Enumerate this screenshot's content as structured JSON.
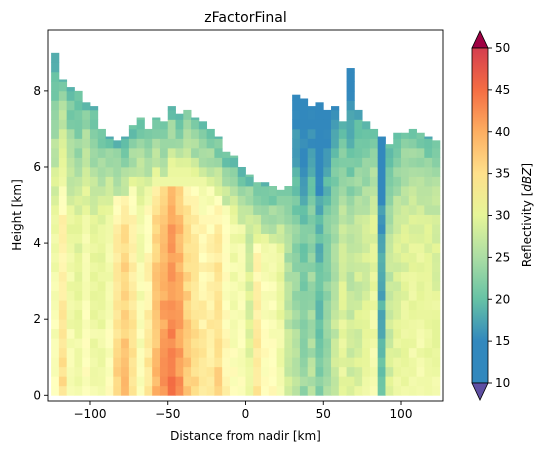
{
  "chart_data": {
    "type": "heatmap",
    "title": "zFactorFinal",
    "xlabel": "Distance from nadir [km]",
    "ylabel": "Height [km]",
    "xlim": [
      -127,
      127
    ],
    "ylim": [
      -0.15,
      9.6
    ],
    "x_ticks": [
      -100,
      -50,
      0,
      50,
      100
    ],
    "y_ticks": [
      0,
      2,
      4,
      6,
      8
    ],
    "colorbar": {
      "label_prefix": "Reflectivity [",
      "label_unit": "dBZ",
      "label_suffix": "]",
      "min": 10,
      "max": 50,
      "ticks": [
        10,
        15,
        20,
        25,
        30,
        35,
        40,
        45,
        50
      ],
      "colormap": "Spectral_r",
      "extend": "both"
    },
    "grid": {
      "x_start": -125,
      "x_step": 5,
      "y_step": 0.25,
      "column_centers_km": [
        -122.5,
        -117.5,
        -112.5,
        -107.5,
        -102.5,
        -97.5,
        -92.5,
        -87.5,
        -82.5,
        -77.5,
        -72.5,
        -67.5,
        -62.5,
        -57.5,
        -52.5,
        -47.5,
        -42.5,
        -37.5,
        -32.5,
        -27.5,
        -22.5,
        -17.5,
        -12.5,
        -7.5,
        -2.5,
        2.5,
        7.5,
        12.5,
        17.5,
        22.5,
        27.5,
        32.5,
        37.5,
        42.5,
        47.5,
        52.5,
        57.5,
        62.5,
        67.5,
        72.5,
        77.5,
        82.5,
        87.5,
        92.5,
        97.5,
        102.5,
        107.5,
        112.5,
        117.5,
        122.5
      ],
      "echo_top_km": [
        9.0,
        8.3,
        8.1,
        8.0,
        7.7,
        7.6,
        7.0,
        6.8,
        6.7,
        6.8,
        7.1,
        7.3,
        7.0,
        7.3,
        7.2,
        7.6,
        7.4,
        7.5,
        7.3,
        7.2,
        7.0,
        6.8,
        6.4,
        6.3,
        6.0,
        5.8,
        5.6,
        5.6,
        5.5,
        5.4,
        5.5,
        7.9,
        7.8,
        7.6,
        7.7,
        7.5,
        7.6,
        7.2,
        8.6,
        7.5,
        7.2,
        7.0,
        6.8,
        6.6,
        6.9,
        6.9,
        7.0,
        6.9,
        6.8,
        6.7
      ],
      "surface_core_dbz": [
        30,
        35,
        29,
        28,
        30,
        28,
        28,
        30,
        36,
        38,
        35,
        30,
        34,
        39,
        42,
        44,
        42,
        38,
        36,
        34,
        34,
        36,
        32,
        30,
        30,
        26,
        34,
        31,
        30,
        28,
        23,
        21,
        19,
        21,
        17,
        20,
        23,
        26,
        24,
        25,
        26,
        28,
        15,
        24,
        26,
        27,
        28,
        28,
        27,
        27
      ]
    }
  }
}
